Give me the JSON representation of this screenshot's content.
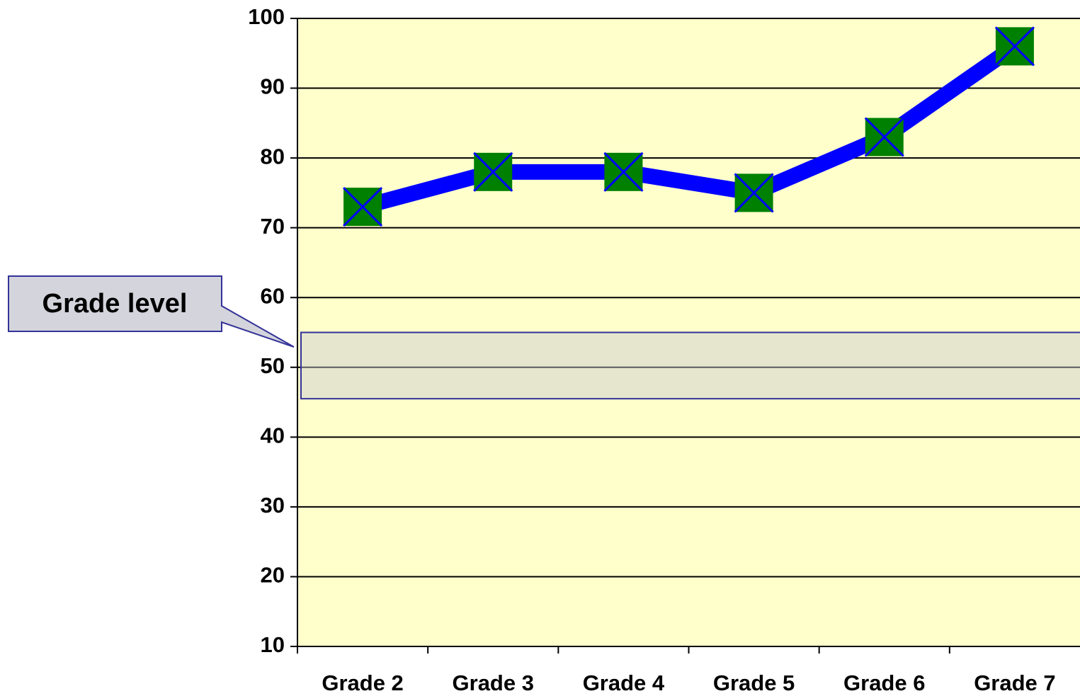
{
  "chart_data": {
    "type": "line",
    "categories": [
      "Grade 2",
      "Grade 3",
      "Grade 4",
      "Grade 5",
      "Grade 6",
      "Grade 7"
    ],
    "series": [
      {
        "color": "#0000ff",
        "marker_color": "#008000",
        "values": [
          73,
          78,
          78,
          75,
          83,
          96
        ]
      }
    ],
    "ylim": [
      10,
      100
    ],
    "yticks": [
      10,
      20,
      30,
      40,
      50,
      60,
      70,
      80,
      90,
      100
    ],
    "grid": true,
    "plot_background": "#ffffcc",
    "annotation": {
      "text": "Grade level",
      "range": [
        45.5,
        55
      ]
    }
  }
}
